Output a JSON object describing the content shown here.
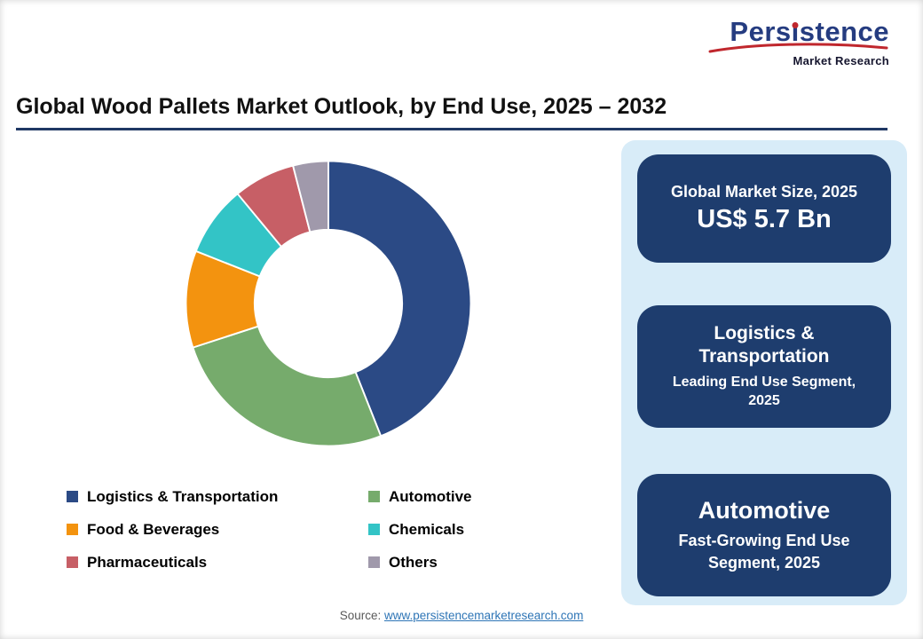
{
  "logo": {
    "brand_pre": "Pers",
    "brand_i": "ı",
    "brand_post": "stence",
    "subtitle": "Market Research",
    "brand_color": "#253c80",
    "accent_color": "#c0272d"
  },
  "header": {
    "title": "Global Wood Pallets Market Outlook, by End Use, 2025 – 2032"
  },
  "chart_data": {
    "type": "pie",
    "donut": true,
    "title": "Global Wood Pallets Market Outlook, by End Use, 2025 – 2032",
    "categories": [
      "Logistics & Transportation",
      "Automotive",
      "Food & Beverages",
      "Chemicals",
      "Pharmaceuticals",
      "Others"
    ],
    "values": [
      44,
      26,
      11,
      8,
      7,
      4
    ],
    "values_note": "percent share, estimated from arc angles (no data labels shown)",
    "colors": [
      "#2b4a85",
      "#76ab6c",
      "#f3930f",
      "#33c4c6",
      "#c75f66",
      "#a099ab"
    ],
    "start_angle_deg": 0,
    "direction": "clockwise",
    "inner_radius_ratio": 0.52,
    "legend_position": "bottom-left"
  },
  "sidebar": {
    "background": "#d8ecf8",
    "card_color": "#1e3d6e",
    "cards": [
      {
        "title": "Global Market Size, 2025",
        "value": "US$ 5.7 Bn"
      },
      {
        "title": "Logistics & Transportation",
        "subtitle": "Leading End Use Segment, 2025"
      },
      {
        "title": "Automotive",
        "subtitle": "Fast-Growing End Use Segment, 2025"
      }
    ]
  },
  "footer": {
    "source_label": "Source:",
    "source_link_text": "www.persistencemarketresearch.com"
  }
}
